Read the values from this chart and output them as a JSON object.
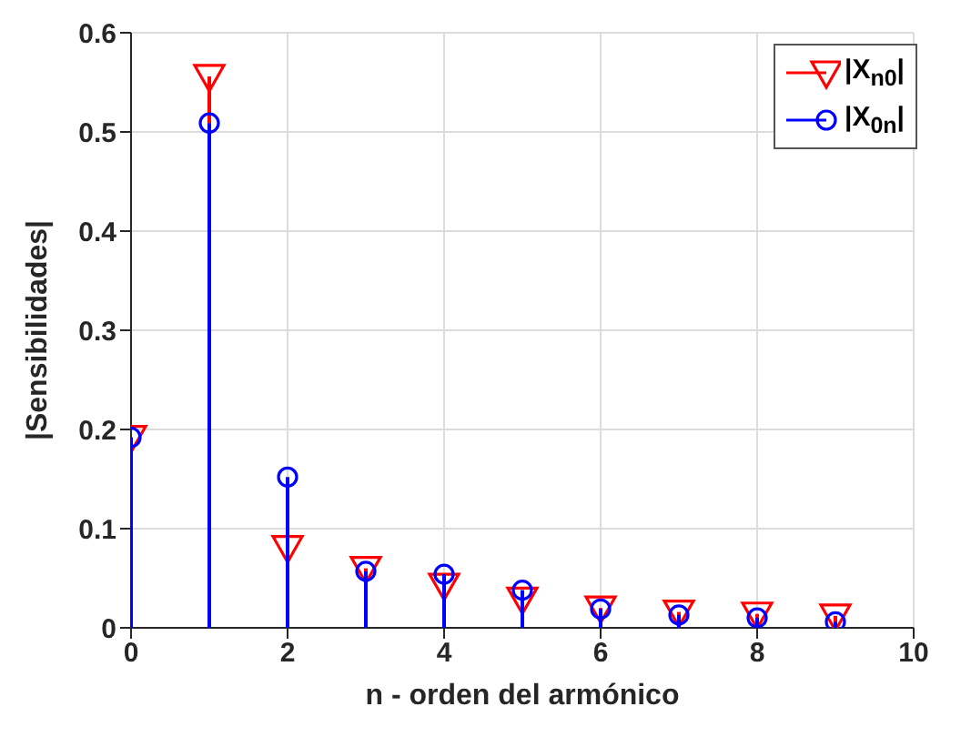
{
  "chart_data": {
    "type": "lollipop",
    "xlabel": "n - orden del armónico",
    "ylabel": "|Sensibilidades|",
    "x": [
      0,
      1,
      2,
      3,
      4,
      5,
      6,
      7,
      8,
      9
    ],
    "series": [
      {
        "name": "|X$_{n0}$|",
        "color": "#ff0000",
        "marker": "triangle",
        "values": [
          0.192,
          0.556,
          0.081,
          0.06,
          0.043,
          0.029,
          0.02,
          0.016,
          0.014,
          0.012
        ]
      },
      {
        "name": "|X$_{0n}$|",
        "color": "#0000ff",
        "marker": "circle",
        "values": [
          0.192,
          0.509,
          0.152,
          0.057,
          0.054,
          0.038,
          0.019,
          0.013,
          0.01,
          0.006
        ]
      }
    ],
    "xlim": [
      0,
      10
    ],
    "xticks": [
      0,
      2,
      4,
      6,
      8,
      10
    ],
    "ylim": [
      0,
      0.6
    ],
    "yticks": [
      0,
      0.1,
      0.2,
      0.3,
      0.4,
      0.5,
      0.6
    ],
    "grid": true,
    "legend": "top right"
  }
}
